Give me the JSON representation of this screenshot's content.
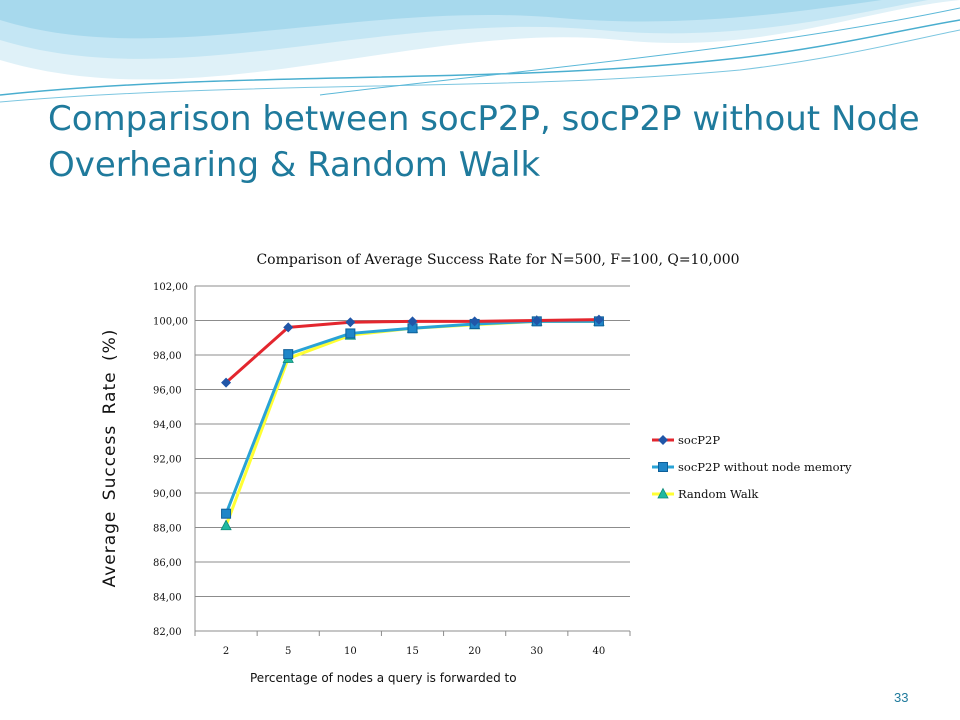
{
  "slide": {
    "title": "Comparison between socP2P, socP2P without Node Overhearing & Random Walk",
    "page_number": "33",
    "accent_color": "#1f7a9c"
  },
  "chart_data": {
    "type": "line",
    "title": "Comparison of Average Success Rate for N=500, F=100, Q=10,000",
    "xlabel": "Percentage of nodes a query is forwarded to",
    "ylabel": "Average Success Rate (%)",
    "categories": [
      "2",
      "5",
      "10",
      "15",
      "20",
      "30",
      "40"
    ],
    "ylim": [
      82,
      102
    ],
    "ytick_labels": [
      "82,00",
      "84,00",
      "86,00",
      "88,00",
      "90,00",
      "92,00",
      "94,00",
      "96,00",
      "98,00",
      "100,00",
      "102,00"
    ],
    "grid": true,
    "legend_position": "right",
    "series": [
      {
        "name": "socP2P",
        "values": [
          96.4,
          99.6,
          99.9,
          99.95,
          99.95,
          100.0,
          100.05
        ],
        "color": "#e3262e",
        "marker": "diamond",
        "marker_color": "#2056a8"
      },
      {
        "name": "socP2P without node memory",
        "values": [
          88.8,
          98.05,
          99.25,
          99.55,
          99.8,
          99.95,
          99.95
        ],
        "color": "#29a3d6",
        "marker": "square",
        "marker_color": "#1f86c8"
      },
      {
        "name": "Random Walk",
        "values": [
          88.1,
          97.8,
          99.15,
          99.55,
          99.75,
          99.95,
          99.95
        ],
        "color": "#ffff33",
        "marker": "triangle",
        "marker_color": "#1fb8a0"
      }
    ]
  }
}
